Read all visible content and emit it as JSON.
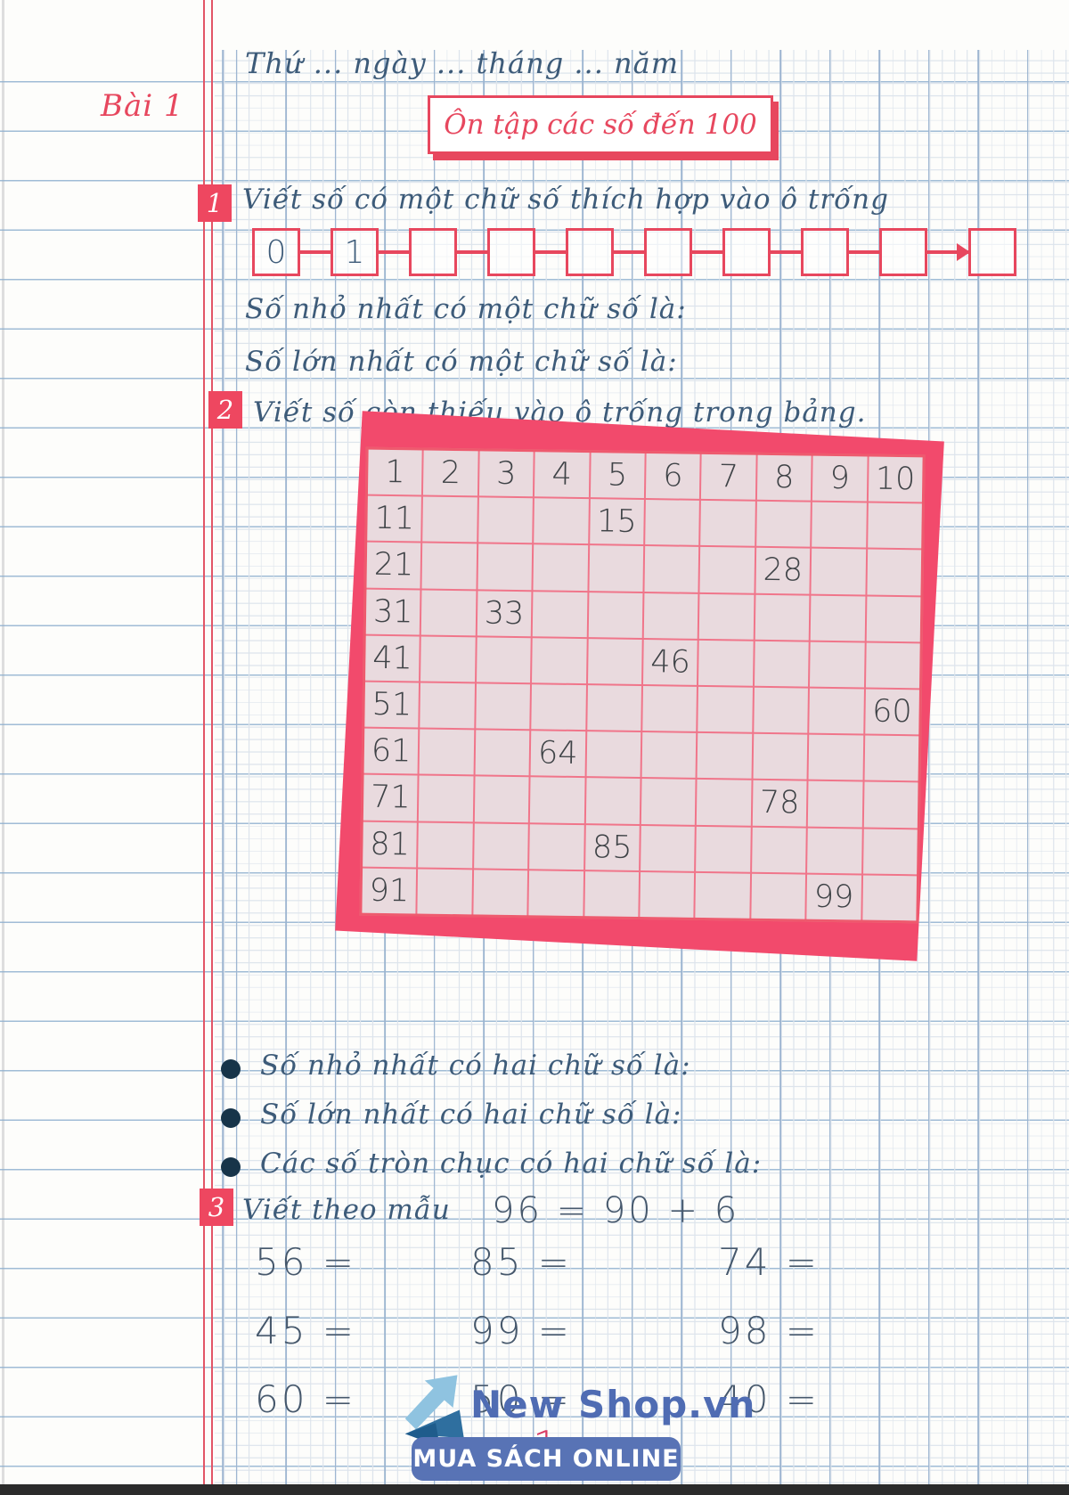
{
  "page": {
    "header_line": "Thứ ... ngày ... tháng ... năm",
    "lesson_label": "Bài 1",
    "title": "Ôn tập các số đến 100",
    "page_number": "1"
  },
  "exercises": {
    "ex1": {
      "number": "1",
      "prompt": "Viết số có một chữ số thích hợp vào ô trống",
      "number_line": [
        "0",
        "1",
        "",
        "",
        "",
        "",
        "",
        "",
        "",
        ""
      ],
      "sub_line_min": "Số nhỏ nhất có một chữ số là:",
      "sub_line_max": "Số lớn nhất có một chữ số là:"
    },
    "ex2": {
      "number": "2",
      "prompt": "Viết số còn thiếu vào ô trống trong bảng.",
      "table": [
        [
          "1",
          "2",
          "3",
          "4",
          "5",
          "6",
          "7",
          "8",
          "9",
          "10"
        ],
        [
          "11",
          "",
          "",
          "",
          "15",
          "",
          "",
          "",
          "",
          ""
        ],
        [
          "21",
          "",
          "",
          "",
          "",
          "",
          "",
          "28",
          "",
          ""
        ],
        [
          "31",
          "",
          "33",
          "",
          "",
          "",
          "",
          "",
          "",
          ""
        ],
        [
          "41",
          "",
          "",
          "",
          "",
          "46",
          "",
          "",
          "",
          ""
        ],
        [
          "51",
          "",
          "",
          "",
          "",
          "",
          "",
          "",
          "",
          "60"
        ],
        [
          "61",
          "",
          "",
          "64",
          "",
          "",
          "",
          "",
          "",
          ""
        ],
        [
          "71",
          "",
          "",
          "",
          "",
          "",
          "",
          "78",
          "",
          ""
        ],
        [
          "81",
          "",
          "",
          "",
          "85",
          "",
          "",
          "",
          "",
          ""
        ],
        [
          "91",
          "",
          "",
          "",
          "",
          "",
          "",
          "",
          "99",
          ""
        ]
      ],
      "bullets": {
        "min_two_digit": "Số nhỏ nhất có hai chữ số là:",
        "max_two_digit": "Số lớn nhất có hai chữ số là:",
        "round_tens": "Các số tròn chục có hai chữ số là:"
      }
    },
    "ex3": {
      "number": "3",
      "prompt": "Viết theo mẫu",
      "example": "96 = 90 + 6",
      "columns": [
        [
          "56 =",
          "45 =",
          "60 ="
        ],
        [
          "85 =",
          "99 =",
          "50 ="
        ],
        [
          "74 =",
          "98 =",
          "40 ="
        ]
      ]
    }
  },
  "footer": {
    "brand": "New Shop.vn",
    "badge": "MUA SÁCH ONLINE"
  },
  "colors": {
    "accent_red": "#e7475e",
    "card_pink": "#f24a6c",
    "table_line": "#f0758a",
    "table_cell": "#e9dade",
    "ink_blue": "#3d5b79",
    "digit_gray": "#45484c",
    "brand_blue": "#4f6cb3",
    "badge_blue": "#5873b5"
  }
}
